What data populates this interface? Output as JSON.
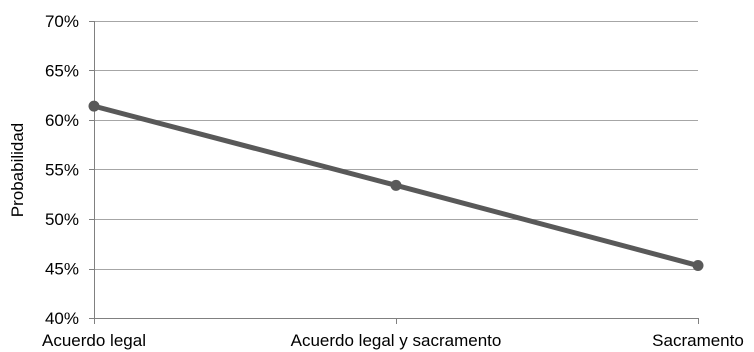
{
  "chart_data": {
    "type": "line",
    "title": "",
    "xlabel": "",
    "ylabel": "Probabilidad",
    "categories": [
      "Acuerdo legal",
      "Acuerdo legal y sacramento",
      "Sacramento"
    ],
    "series": [
      {
        "values": [
          0.614,
          0.534,
          0.453
        ]
      }
    ],
    "ylim": [
      0.4,
      0.7
    ],
    "y_ticks": [
      0.4,
      0.45,
      0.5,
      0.55,
      0.6,
      0.65,
      0.7
    ],
    "y_tick_labels": [
      "40%",
      "45%",
      "50%",
      "55%",
      "60%",
      "65%",
      "70%"
    ],
    "grid": "horizontal",
    "legend": "none",
    "colors": {
      "series": "#595959",
      "grid": "#a6a6a6",
      "axis": "#808080"
    }
  }
}
